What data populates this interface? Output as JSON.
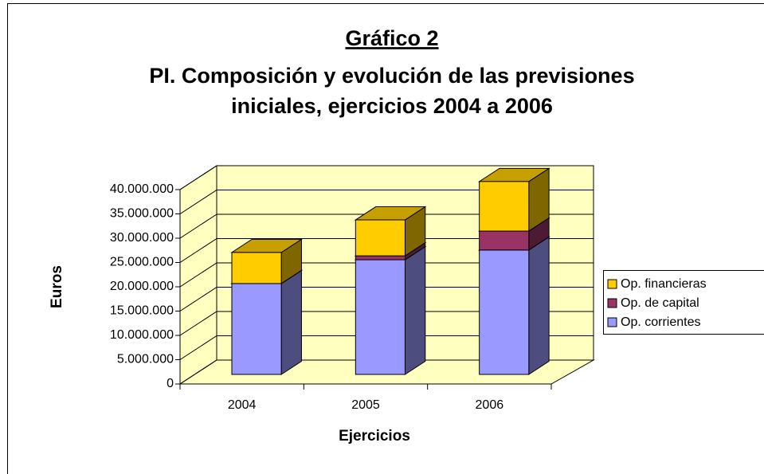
{
  "chart_data": {
    "type": "bar3d_stacked",
    "title": "Gráfico 2",
    "subtitle": [
      "PI. Composición y evolución de las previsiones",
      "iniciales, ejercicios 2004 a 2006"
    ],
    "xlabel": "Ejercicios",
    "ylabel": "Euros",
    "categories": [
      "2004",
      "2005",
      "2006"
    ],
    "series": [
      {
        "name": "Op. corrientes",
        "color": "#9999ff",
        "values": [
          18700000,
          23600000,
          25600000
        ]
      },
      {
        "name": "Op. de capital",
        "color": "#993366",
        "values": [
          0,
          800000,
          3900000
        ]
      },
      {
        "name": "Op. financieras",
        "color": "#ffcc00",
        "values": [
          6400000,
          7400000,
          10200000
        ]
      }
    ],
    "ylim": [
      0,
      40000000
    ],
    "yticks": [
      0,
      {
        "value": 5000000,
        "label": "5.000.000"
      },
      {
        "value": 10000000,
        "label": "10.000.000"
      },
      {
        "value": 15000000,
        "label": "15.000.000"
      },
      {
        "value": 20000000,
        "label": "20.000.000"
      },
      {
        "value": 25000000,
        "label": "25.000.000"
      },
      {
        "value": 30000000,
        "label": "30.000.000"
      },
      {
        "value": 35000000,
        "label": "35.000.000"
      },
      {
        "value": 40000000,
        "label": "40.000.000"
      }
    ],
    "grid": true,
    "wall_color": "#ffffc0",
    "legend": "right"
  }
}
